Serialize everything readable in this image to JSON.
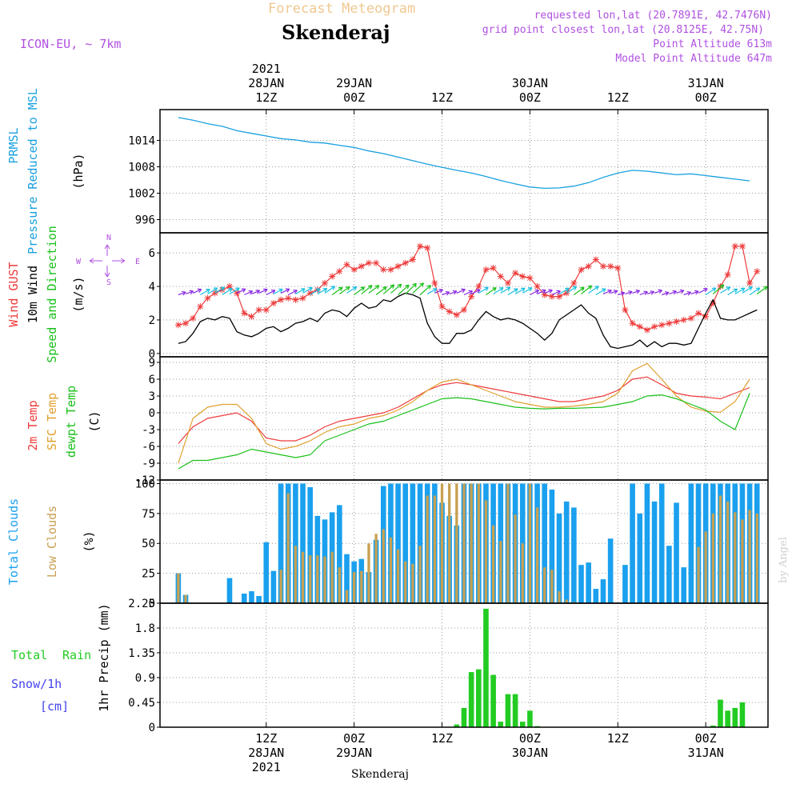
{
  "header": {
    "title": "Forecast Meteogram",
    "station": "Skenderaj",
    "model": "ICON-EU, ~ 7km",
    "requested": "requested lon,lat (20.7891E, 42.7476N)",
    "gridpoint": "grid point closest lon,lat (20.8125E, 42.75N)",
    "point_alt": "Point Altitude 613m",
    "model_alt": "Model Point Altitude 647m",
    "footer_station": "Skenderaj",
    "watermark": "by Angel"
  },
  "colors": {
    "pressure": "#19a0e0",
    "gust": "#ee3b3b",
    "wind": "#000000",
    "dir": "#19c019",
    "temp2m": "#ee3b3b",
    "sfc": "#e0a030",
    "dewpt": "#19c019",
    "total_clouds": "#1aa0ee",
    "low_clouds": "#c8a050",
    "rain": "#22cc22",
    "snow": "#4444ee",
    "purple": "#b050e0"
  },
  "time_axis": {
    "top_labels": [
      {
        "h": 12,
        "lines": [
          "2021",
          "28JAN",
          "12Z"
        ]
      },
      {
        "h": 24,
        "lines": [
          "29JAN",
          "00Z"
        ]
      },
      {
        "h": 36,
        "lines": [
          "12Z"
        ]
      },
      {
        "h": 48,
        "lines": [
          "30JAN",
          "00Z"
        ]
      },
      {
        "h": 60,
        "lines": [
          "12Z"
        ]
      },
      {
        "h": 72,
        "lines": [
          "31JAN",
          "00Z"
        ]
      }
    ],
    "bottom_labels": [
      {
        "h": 12,
        "lines": [
          "12Z",
          "28JAN",
          "2021"
        ]
      },
      {
        "h": 24,
        "lines": [
          "00Z",
          "29JAN"
        ]
      },
      {
        "h": 36,
        "lines": [
          "12Z"
        ]
      },
      {
        "h": 48,
        "lines": [
          "00Z",
          "30JAN"
        ]
      },
      {
        "h": 60,
        "lines": [
          "12Z"
        ]
      },
      {
        "h": 72,
        "lines": [
          "00Z",
          "31JAN"
        ]
      }
    ]
  },
  "chart_data": [
    {
      "type": "line",
      "name": "pressure",
      "ylabels": [
        "PRMSL",
        "Pressure Reduced to MSL"
      ],
      "unit": "(hPa)",
      "ylim": [
        993,
        1021
      ],
      "yticks": [
        1014,
        1008,
        1002,
        996
      ],
      "x": [
        0,
        2,
        4,
        6,
        8,
        10,
        12,
        14,
        16,
        18,
        20,
        22,
        24,
        26,
        28,
        30,
        32,
        34,
        36,
        38,
        40,
        42,
        44,
        46,
        48,
        50,
        52,
        54,
        56,
        58,
        60,
        62,
        64,
        66,
        68,
        70,
        72,
        74,
        76,
        78
      ],
      "values": [
        1019.2,
        1018.6,
        1017.8,
        1017.2,
        1016.2,
        1015.6,
        1015.0,
        1014.4,
        1014.1,
        1013.6,
        1013.4,
        1012.9,
        1012.4,
        1011.6,
        1011.0,
        1010.2,
        1009.4,
        1008.6,
        1007.9,
        1007.2,
        1006.6,
        1005.8,
        1004.9,
        1004.1,
        1003.4,
        1003.1,
        1003.2,
        1003.6,
        1004.4,
        1005.6,
        1006.6,
        1007.2,
        1007.0,
        1006.6,
        1006.2,
        1006.4,
        1006.0,
        1005.6,
        1005.2,
        1004.8
      ]
    },
    {
      "type": "line",
      "name": "wind",
      "ylabels": [
        "Wind GUST",
        "10m Wind",
        "Speed and Direction"
      ],
      "unit": "(m/s)",
      "ylim": [
        -0.2,
        7.2
      ],
      "yticks": [
        6,
        4,
        2,
        0
      ],
      "compass": {
        "n": "N",
        "s": "S",
        "w": "W",
        "e": "E"
      },
      "x": [
        0,
        1,
        2,
        3,
        4,
        5,
        6,
        7,
        8,
        9,
        10,
        11,
        12,
        13,
        14,
        15,
        16,
        17,
        18,
        19,
        20,
        21,
        22,
        23,
        24,
        25,
        26,
        27,
        28,
        29,
        30,
        31,
        32,
        33,
        34,
        35,
        36,
        37,
        38,
        39,
        40,
        41,
        42,
        43,
        44,
        45,
        46,
        47,
        48,
        49,
        50,
        51,
        52,
        53,
        54,
        55,
        56,
        57,
        58,
        59,
        60,
        61,
        62,
        63,
        64,
        65,
        66,
        67,
        68,
        69,
        70,
        71,
        72,
        73,
        74,
        75,
        76,
        77,
        78,
        79
      ],
      "gust": [
        1.7,
        1.8,
        2.1,
        2.8,
        3.3,
        3.6,
        3.8,
        4.0,
        3.6,
        2.4,
        2.2,
        2.6,
        2.6,
        3.0,
        3.2,
        3.3,
        3.2,
        3.3,
        3.6,
        3.8,
        4.2,
        4.6,
        4.9,
        5.3,
        5.0,
        5.2,
        5.4,
        5.4,
        5.0,
        5.0,
        5.2,
        5.4,
        5.6,
        6.4,
        6.3,
        4.2,
        2.8,
        2.5,
        2.3,
        2.6,
        3.4,
        4.0,
        5.0,
        5.1,
        4.6,
        4.2,
        4.8,
        4.6,
        4.5,
        4.0,
        3.5,
        3.4,
        3.4,
        3.6,
        4.2,
        5.0,
        5.2,
        5.6,
        5.2,
        5.2,
        5.1,
        2.6,
        1.8,
        1.6,
        1.4,
        1.6,
        1.7,
        1.8,
        1.9,
        2.0,
        2.1,
        2.4,
        2.2,
        3.0,
        4.0,
        4.7,
        6.4,
        6.4,
        4.2,
        4.9
      ],
      "wind": [
        0.6,
        0.7,
        1.2,
        1.9,
        2.1,
        2.0,
        2.2,
        2.1,
        1.3,
        1.1,
        1.0,
        1.2,
        1.5,
        1.6,
        1.3,
        1.5,
        1.8,
        1.9,
        2.1,
        1.9,
        2.4,
        2.6,
        2.5,
        2.2,
        2.7,
        3.0,
        2.7,
        2.8,
        3.2,
        3.1,
        3.4,
        3.6,
        3.5,
        3.3,
        1.8,
        1.0,
        0.6,
        0.6,
        1.2,
        1.2,
        1.4,
        2.0,
        2.5,
        2.2,
        2.0,
        2.1,
        2.0,
        1.8,
        1.5,
        1.2,
        0.8,
        1.2,
        2.0,
        2.3,
        2.6,
        2.9,
        2.4,
        2.1,
        1.1,
        0.4,
        0.3,
        0.4,
        0.5,
        0.8,
        0.4,
        0.7,
        0.4,
        0.6,
        0.6,
        0.5,
        0.6,
        1.5,
        2.4,
        3.2,
        2.1,
        2.0,
        2.0,
        2.2,
        2.4,
        2.6
      ]
    },
    {
      "type": "line",
      "name": "temperature",
      "ylabels": [
        "2m Temp",
        "SFC Temp",
        "dewpt Temp"
      ],
      "unit": "(C)",
      "ylim": [
        -12,
        10
      ],
      "yticks": [
        9,
        6,
        3,
        0,
        -3,
        -6,
        -9,
        -12
      ],
      "x": [
        0,
        2,
        4,
        6,
        8,
        10,
        12,
        14,
        16,
        18,
        20,
        22,
        24,
        26,
        28,
        30,
        32,
        34,
        36,
        38,
        40,
        42,
        44,
        46,
        48,
        50,
        52,
        54,
        56,
        58,
        60,
        62,
        64,
        66,
        68,
        70,
        72,
        74,
        76,
        78
      ],
      "temp2m": [
        -5.5,
        -2.5,
        -1.0,
        -0.5,
        0.0,
        -1.5,
        -4.5,
        -5.0,
        -5.0,
        -4.0,
        -2.5,
        -1.5,
        -1.0,
        -0.5,
        0.0,
        1.0,
        2.5,
        4.0,
        5.0,
        5.4,
        5.0,
        4.5,
        4.0,
        3.5,
        3.0,
        2.5,
        2.0,
        2.0,
        2.5,
        3.0,
        4.0,
        6.0,
        6.4,
        5.0,
        3.5,
        3.0,
        2.8,
        2.5,
        3.5,
        4.5
      ],
      "sfc": [
        -9.0,
        -1.0,
        1.0,
        1.5,
        1.5,
        -1.0,
        -5.5,
        -6.5,
        -6.0,
        -5.0,
        -3.5,
        -2.5,
        -2.0,
        -1.0,
        -0.5,
        0.5,
        2.0,
        4.0,
        5.5,
        6.0,
        5.0,
        4.0,
        3.0,
        2.0,
        1.5,
        1.0,
        1.0,
        1.2,
        1.5,
        2.0,
        3.5,
        7.5,
        8.8,
        6.0,
        3.0,
        1.0,
        0.3,
        0.1,
        2.0,
        6.0
      ],
      "dewpt": [
        -10.0,
        -8.5,
        -8.5,
        -8.0,
        -7.5,
        -6.5,
        -7.0,
        -7.5,
        -8.0,
        -7.5,
        -5.0,
        -4.0,
        -3.0,
        -2.0,
        -1.5,
        -0.5,
        0.5,
        1.5,
        2.5,
        2.7,
        2.5,
        2.0,
        1.5,
        1.0,
        0.8,
        0.7,
        0.8,
        0.8,
        0.9,
        1.0,
        1.5,
        2.0,
        3.0,
        3.2,
        2.5,
        1.5,
        0.5,
        -1.5,
        -3.0,
        3.5
      ]
    },
    {
      "type": "bar",
      "name": "clouds",
      "ylabels": [
        "Total Clouds",
        "Low Clouds"
      ],
      "unit": "(%)",
      "ylim": [
        0,
        103
      ],
      "yticks": [
        100,
        75,
        50,
        25,
        0
      ],
      "x": [
        0,
        1,
        2,
        3,
        4,
        5,
        6,
        7,
        8,
        9,
        10,
        11,
        12,
        13,
        14,
        15,
        16,
        17,
        18,
        19,
        20,
        21,
        22,
        23,
        24,
        25,
        26,
        27,
        28,
        29,
        30,
        31,
        32,
        33,
        34,
        35,
        36,
        37,
        38,
        39,
        40,
        41,
        42,
        43,
        44,
        45,
        46,
        47,
        48,
        49,
        50,
        51,
        52,
        53,
        54,
        55,
        56,
        57,
        58,
        59,
        60,
        61,
        62,
        63,
        64,
        65,
        66,
        67,
        68,
        69,
        70,
        71,
        72,
        73,
        74,
        75,
        76,
        77,
        78,
        79
      ],
      "total": [
        25,
        7,
        0,
        0,
        0,
        0,
        0,
        21,
        0,
        8,
        10,
        6,
        51,
        27,
        100,
        100,
        100,
        100,
        97,
        73,
        70,
        76,
        82,
        41,
        35,
        37,
        26,
        53,
        98,
        100,
        100,
        100,
        100,
        100,
        100,
        100,
        84,
        73,
        65,
        100,
        100,
        100,
        100,
        100,
        100,
        100,
        100,
        100,
        100,
        100,
        100,
        95,
        75,
        85,
        80,
        32,
        34,
        12,
        20,
        54,
        0,
        32,
        100,
        75,
        100,
        85,
        100,
        48,
        84,
        30,
        100,
        100,
        100,
        100,
        100,
        100,
        100,
        100,
        100,
        100
      ],
      "low": [
        25,
        7,
        0,
        0,
        0,
        0,
        0,
        0,
        0,
        0,
        0,
        0,
        0,
        0,
        28,
        92,
        48,
        43,
        40,
        40,
        39,
        43,
        30,
        11,
        26,
        27,
        50,
        58,
        62,
        55,
        45,
        35,
        33,
        48,
        90,
        90,
        100,
        100,
        100,
        100,
        100,
        100,
        86,
        65,
        52,
        100,
        74,
        50,
        100,
        80,
        30,
        28,
        10,
        3,
        1,
        0,
        0,
        0,
        0,
        0,
        0,
        0,
        0,
        0,
        0,
        0,
        0,
        0,
        0,
        0,
        0,
        47,
        60,
        75,
        90,
        85,
        76,
        70,
        78,
        75
      ]
    },
    {
      "type": "bar",
      "name": "precip",
      "ylabels": [
        "Total",
        "Rain",
        "Snow/1h",
        "[cm]"
      ],
      "ylabel": "1hr Precip (mm)",
      "ylim": [
        0,
        2.25
      ],
      "yticks": [
        2.25,
        1.8,
        1.35,
        0.9,
        0.45,
        0
      ],
      "x": [
        0,
        1,
        2,
        3,
        4,
        5,
        6,
        7,
        8,
        9,
        10,
        11,
        12,
        13,
        14,
        15,
        16,
        17,
        18,
        19,
        20,
        21,
        22,
        23,
        24,
        25,
        26,
        27,
        28,
        29,
        30,
        31,
        32,
        33,
        34,
        35,
        36,
        37,
        38,
        39,
        40,
        41,
        42,
        43,
        44,
        45,
        46,
        47,
        48,
        49,
        50,
        51,
        52,
        53,
        54,
        55,
        56,
        57,
        58,
        59,
        60,
        61,
        62,
        63,
        64,
        65,
        66,
        67,
        68,
        69,
        70,
        71,
        72,
        73,
        74,
        75,
        76,
        77,
        78,
        79
      ],
      "values": [
        0,
        0,
        0,
        0,
        0,
        0,
        0,
        0,
        0,
        0,
        0,
        0,
        0,
        0,
        0,
        0,
        0,
        0,
        0,
        0,
        0,
        0,
        0,
        0,
        0,
        0,
        0,
        0,
        0,
        0,
        0,
        0,
        0,
        0,
        0,
        0,
        0,
        0,
        0.05,
        0.35,
        1.0,
        1.05,
        2.15,
        0.95,
        0.1,
        0.6,
        0.6,
        0.1,
        0.3,
        0.02,
        0,
        0,
        0,
        0,
        0,
        0,
        0,
        0,
        0,
        0,
        0,
        0,
        0,
        0,
        0,
        0,
        0,
        0,
        0,
        0,
        0,
        0,
        0,
        0.03,
        0.5,
        0.3,
        0.35,
        0.45,
        0,
        0
      ]
    }
  ]
}
